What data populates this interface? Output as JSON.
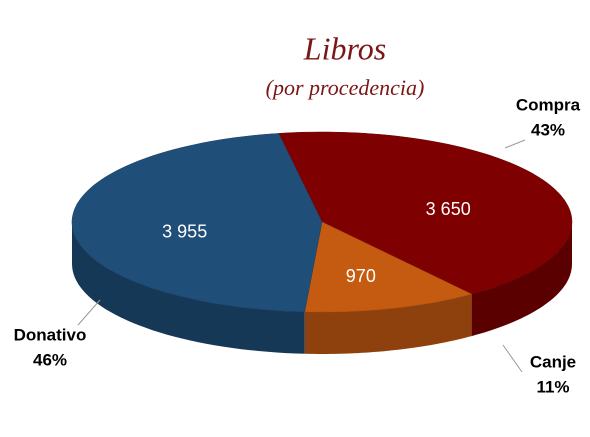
{
  "chart_data": {
    "type": "pie3d",
    "title": "Libros",
    "subtitle": "(por procedencia)",
    "categories": [
      "Compra",
      "Canje",
      "Donativo"
    ],
    "values": [
      3650,
      970,
      3955
    ],
    "value_labels": [
      "3 650",
      "970",
      "3 955"
    ],
    "percent_labels": [
      "43%",
      "11%",
      "46%"
    ],
    "colors": [
      "#7f0000",
      "#c55a11",
      "#1f4e79"
    ]
  }
}
